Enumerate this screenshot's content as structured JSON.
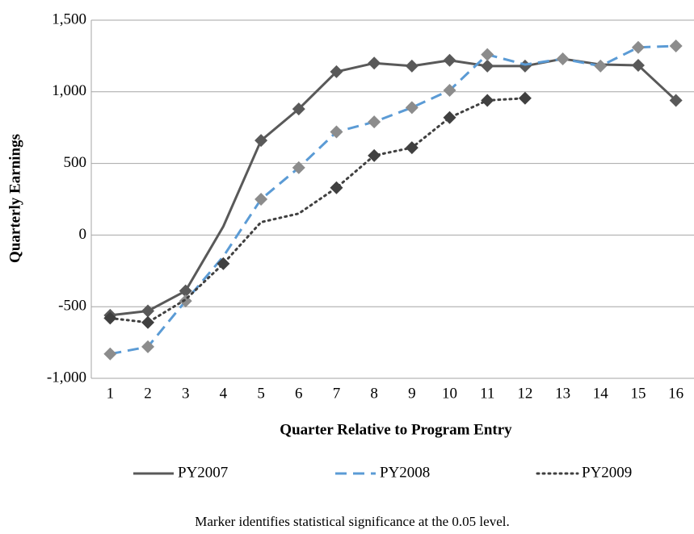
{
  "chart_data": {
    "type": "line",
    "x_label": "Quarter Relative to Program Entry",
    "y_label": "Quarterly Earnings",
    "note": "Marker identifies statistical significance at the 0.05 level.",
    "categories": [
      "1",
      "2",
      "3",
      "4",
      "5",
      "6",
      "7",
      "8",
      "9",
      "10",
      "11",
      "12",
      "13",
      "14",
      "15",
      "16"
    ],
    "ylim": [
      -1000,
      1500
    ],
    "yticks": [
      {
        "value": -1000,
        "label": "-1,000"
      },
      -500,
      0,
      500,
      {
        "value": 1000,
        "label": "1,000"
      },
      {
        "value": 1500,
        "label": "1,500"
      }
    ],
    "grid": true,
    "legend": "bottom",
    "series": [
      {
        "name": "PY2007",
        "color": "#595959",
        "marker_color": "#595959",
        "dash": "solid",
        "values": [
          -560,
          -530,
          -390,
          60,
          660,
          880,
          1140,
          1200,
          1180,
          1220,
          1180,
          1180,
          1230,
          1190,
          1185,
          940
        ],
        "significant": [
          true,
          true,
          true,
          false,
          true,
          true,
          true,
          true,
          true,
          true,
          true,
          true,
          false,
          false,
          true,
          true
        ]
      },
      {
        "name": "PY2008",
        "color": "#5b9bd5",
        "marker_color": "#8c8c8c",
        "dash": "dash",
        "values": [
          -830,
          -780,
          -460,
          -150,
          250,
          470,
          720,
          790,
          890,
          1010,
          1260,
          1190,
          1230,
          1180,
          1310,
          1320
        ],
        "significant": [
          true,
          true,
          true,
          false,
          true,
          true,
          true,
          true,
          true,
          true,
          true,
          false,
          true,
          true,
          true,
          true
        ]
      },
      {
        "name": "PY2009",
        "color": "#404040",
        "marker_color": "#404040",
        "dash": "dot",
        "values": [
          -580,
          -610,
          -450,
          -200,
          90,
          150,
          330,
          555,
          610,
          820,
          940,
          955,
          null,
          null,
          null,
          null
        ],
        "significant": [
          true,
          true,
          false,
          true,
          false,
          false,
          true,
          true,
          true,
          true,
          true,
          true,
          false,
          false,
          false,
          false
        ]
      }
    ]
  }
}
